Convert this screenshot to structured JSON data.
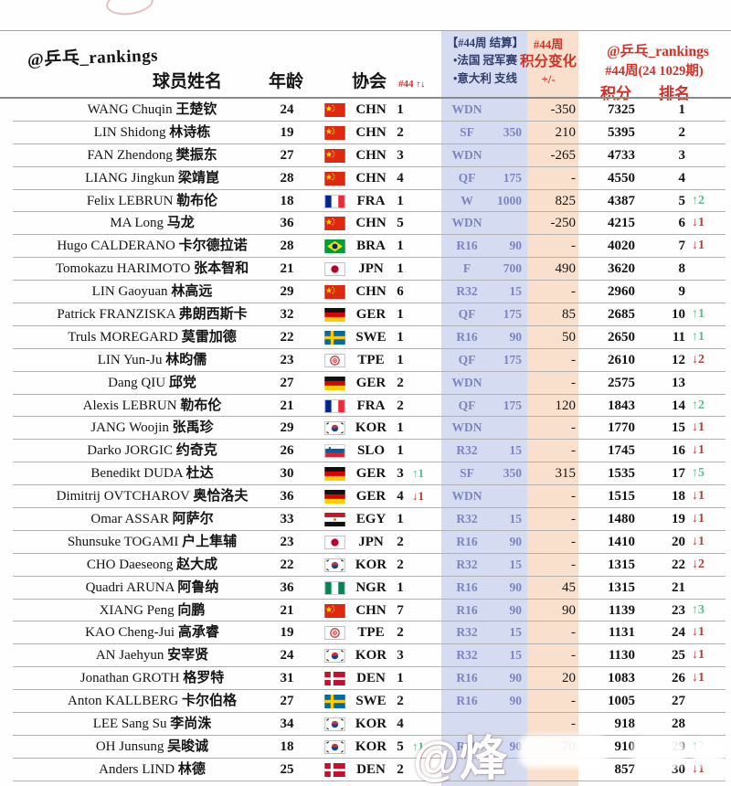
{
  "header": {
    "brand_left": "@乒乓_rankings",
    "col_name": "球员姓名",
    "col_age": "年龄",
    "col_assoc": "协会",
    "col_assoc_week": "#44",
    "col_assoc_arrows": "↑↓",
    "event_line1": "【#44周 结算】",
    "event_line2": "•法国 冠军赛",
    "event_line3": "•意大利 支线",
    "change_line1": "#44周",
    "change_line2": "积分变化",
    "change_line3": "+/-",
    "brand_right": "@乒乓_rankings",
    "week_label": "#44周(24 1029期)",
    "col_points": "积分",
    "col_rank": "排名"
  },
  "colors": {
    "band_blue": "#d5dbf0",
    "band_orange": "#f9e0cc",
    "result_blue": "#7b85bf",
    "header_red": "#d03228",
    "header_navy": "#323f6d",
    "arrow_up_green": "#5abd8e",
    "arrow_down_red": "#b0413b"
  },
  "watermark": {
    "text": "@烽"
  },
  "table": {
    "rows": [
      {
        "en": "WANG Chuqin",
        "zh": "王楚钦",
        "age": "24",
        "assoc": "CHN",
        "arank": "1",
        "achg": "",
        "res": "WDN",
        "rpts": "",
        "chg": "-350",
        "pts": "7325",
        "rank": "1",
        "rchg": ""
      },
      {
        "en": "LIN Shidong",
        "zh": "林诗栋",
        "age": "19",
        "assoc": "CHN",
        "arank": "2",
        "achg": "",
        "res": "SF",
        "rpts": "350",
        "chg": "210",
        "pts": "5395",
        "rank": "2",
        "rchg": ""
      },
      {
        "en": "FAN Zhendong",
        "zh": "樊振东",
        "age": "27",
        "assoc": "CHN",
        "arank": "3",
        "achg": "",
        "res": "WDN",
        "rpts": "",
        "chg": "-265",
        "pts": "4733",
        "rank": "3",
        "rchg": ""
      },
      {
        "en": "LIANG Jingkun",
        "zh": "梁靖崑",
        "age": "28",
        "assoc": "CHN",
        "arank": "4",
        "achg": "",
        "res": "QF",
        "rpts": "175",
        "chg": "-",
        "pts": "4550",
        "rank": "4",
        "rchg": ""
      },
      {
        "en": "Felix LEBRUN",
        "zh": "勒布伦",
        "age": "18",
        "assoc": "FRA",
        "arank": "1",
        "achg": "",
        "res": "W",
        "rpts": "1000",
        "chg": "825",
        "pts": "4387",
        "rank": "5",
        "rchg": "↑2"
      },
      {
        "en": "MA Long",
        "zh": "马龙",
        "age": "36",
        "assoc": "CHN",
        "arank": "5",
        "achg": "",
        "res": "WDN",
        "rpts": "",
        "chg": "-250",
        "pts": "4215",
        "rank": "6",
        "rchg": "↓1"
      },
      {
        "en": "Hugo CALDERANO",
        "zh": "卡尔德拉诺",
        "age": "28",
        "assoc": "BRA",
        "arank": "1",
        "achg": "",
        "res": "R16",
        "rpts": "90",
        "chg": "-",
        "pts": "4020",
        "rank": "7",
        "rchg": "↓1"
      },
      {
        "en": "Tomokazu HARIMOTO",
        "zh": "张本智和",
        "age": "21",
        "assoc": "JPN",
        "arank": "1",
        "achg": "",
        "res": "F",
        "rpts": "700",
        "chg": "490",
        "pts": "3620",
        "rank": "8",
        "rchg": ""
      },
      {
        "en": "LIN Gaoyuan",
        "zh": "林高远",
        "age": "29",
        "assoc": "CHN",
        "arank": "6",
        "achg": "",
        "res": "R32",
        "rpts": "15",
        "chg": "-",
        "pts": "2960",
        "rank": "9",
        "rchg": ""
      },
      {
        "en": "Patrick FRANZISKA",
        "zh": "弗朗西斯卡",
        "age": "32",
        "assoc": "GER",
        "arank": "1",
        "achg": "",
        "res": "QF",
        "rpts": "175",
        "chg": "85",
        "pts": "2685",
        "rank": "10",
        "rchg": "↑1"
      },
      {
        "en": "Truls MOREGARD",
        "zh": "莫雷加德",
        "age": "22",
        "assoc": "SWE",
        "arank": "1",
        "achg": "",
        "res": "R16",
        "rpts": "90",
        "chg": "50",
        "pts": "2650",
        "rank": "11",
        "rchg": "↑1"
      },
      {
        "en": "LIN Yun-Ju",
        "zh": "林昀儒",
        "age": "23",
        "assoc": "TPE",
        "arank": "1",
        "achg": "",
        "res": "QF",
        "rpts": "175",
        "chg": "-",
        "pts": "2610",
        "rank": "12",
        "rchg": "↓2"
      },
      {
        "en": "Dang QIU",
        "zh": "邱党",
        "age": "27",
        "assoc": "GER",
        "arank": "2",
        "achg": "",
        "res": "WDN",
        "rpts": "",
        "chg": "-",
        "pts": "2575",
        "rank": "13",
        "rchg": ""
      },
      {
        "en": "Alexis LEBRUN",
        "zh": "勒布伦",
        "age": "21",
        "assoc": "FRA",
        "arank": "2",
        "achg": "",
        "res": "QF",
        "rpts": "175",
        "chg": "120",
        "pts": "1843",
        "rank": "14",
        "rchg": "↑2"
      },
      {
        "en": "JANG Woojin",
        "zh": "张禹珍",
        "age": "29",
        "assoc": "KOR",
        "arank": "1",
        "achg": "",
        "res": "WDN",
        "rpts": "",
        "chg": "-",
        "pts": "1770",
        "rank": "15",
        "rchg": "↓1"
      },
      {
        "en": "Darko JORGIC",
        "zh": "约奇克",
        "age": "26",
        "assoc": "SLO",
        "arank": "1",
        "achg": "",
        "res": "R32",
        "rpts": "15",
        "chg": "-",
        "pts": "1745",
        "rank": "16",
        "rchg": "↓1"
      },
      {
        "en": "Benedikt DUDA",
        "zh": "杜达",
        "age": "30",
        "assoc": "GER",
        "arank": "3",
        "achg": "↑1",
        "res": "SF",
        "rpts": "350",
        "chg": "315",
        "pts": "1535",
        "rank": "17",
        "rchg": "↑5"
      },
      {
        "en": "Dimitrij OVTCHAROV",
        "zh": "奥恰洛夫",
        "age": "36",
        "assoc": "GER",
        "arank": "4",
        "achg": "↓1",
        "res": "WDN",
        "rpts": "",
        "chg": "-",
        "pts": "1515",
        "rank": "18",
        "rchg": "↓1"
      },
      {
        "en": "Omar ASSAR",
        "zh": "阿萨尔",
        "age": "33",
        "assoc": "EGY",
        "arank": "1",
        "achg": "",
        "res": "R32",
        "rpts": "15",
        "chg": "-",
        "pts": "1480",
        "rank": "19",
        "rchg": "↓1"
      },
      {
        "en": "Shunsuke TOGAMI",
        "zh": "户上隼辅",
        "age": "23",
        "assoc": "JPN",
        "arank": "2",
        "achg": "",
        "res": "R16",
        "rpts": "90",
        "chg": "-",
        "pts": "1410",
        "rank": "20",
        "rchg": "↓1"
      },
      {
        "en": "CHO Daeseong",
        "zh": "赵大成",
        "age": "22",
        "assoc": "KOR",
        "arank": "2",
        "achg": "",
        "res": "R32",
        "rpts": "15",
        "chg": "-",
        "pts": "1315",
        "rank": "22",
        "rchg": "↓2"
      },
      {
        "en": "Quadri ARUNA",
        "zh": "阿鲁纳",
        "age": "36",
        "assoc": "NGR",
        "arank": "1",
        "achg": "",
        "res": "R16",
        "rpts": "90",
        "chg": "45",
        "pts": "1315",
        "rank": "21",
        "rchg": ""
      },
      {
        "en": "XIANG Peng",
        "zh": "向鹏",
        "age": "21",
        "assoc": "CHN",
        "arank": "7",
        "achg": "",
        "res": "R16",
        "rpts": "90",
        "chg": "90",
        "pts": "1139",
        "rank": "23",
        "rchg": "↑3"
      },
      {
        "en": "KAO Cheng-Jui",
        "zh": "高承睿",
        "age": "19",
        "assoc": "TPE",
        "arank": "2",
        "achg": "",
        "res": "R32",
        "rpts": "15",
        "chg": "-",
        "pts": "1131",
        "rank": "24",
        "rchg": "↓1"
      },
      {
        "en": "AN Jaehyun",
        "zh": "安宰贤",
        "age": "24",
        "assoc": "KOR",
        "arank": "3",
        "achg": "",
        "res": "R32",
        "rpts": "15",
        "chg": "-",
        "pts": "1130",
        "rank": "25",
        "rchg": "↓1"
      },
      {
        "en": "Jonathan GROTH",
        "zh": "格罗特",
        "age": "31",
        "assoc": "DEN",
        "arank": "1",
        "achg": "",
        "res": "R16",
        "rpts": "90",
        "chg": "20",
        "pts": "1083",
        "rank": "26",
        "rchg": "↓1"
      },
      {
        "en": "Anton KALLBERG",
        "zh": "卡尔伯格",
        "age": "27",
        "assoc": "SWE",
        "arank": "2",
        "achg": "",
        "res": "R16",
        "rpts": "90",
        "chg": "-",
        "pts": "1005",
        "rank": "27",
        "rchg": ""
      },
      {
        "en": "LEE Sang Su",
        "zh": "李尚洙",
        "age": "34",
        "assoc": "KOR",
        "arank": "4",
        "achg": "",
        "res": "",
        "rpts": "",
        "chg": "-",
        "pts": "918",
        "rank": "28",
        "rchg": ""
      },
      {
        "en": "OH Junsung",
        "zh": "吴晙诚",
        "age": "18",
        "assoc": "KOR",
        "arank": "5",
        "achg": "↑1",
        "res": "R16",
        "rpts": "90",
        "chg": "70",
        "pts": "910",
        "rank": "29",
        "rchg": "↑2"
      },
      {
        "en": "Anders LIND",
        "zh": "林德",
        "age": "25",
        "assoc": "DEN",
        "arank": "2",
        "achg": "",
        "res": "",
        "rpts": "",
        "chg": "",
        "pts": "857",
        "rank": "30",
        "rchg": "↓1"
      }
    ]
  }
}
